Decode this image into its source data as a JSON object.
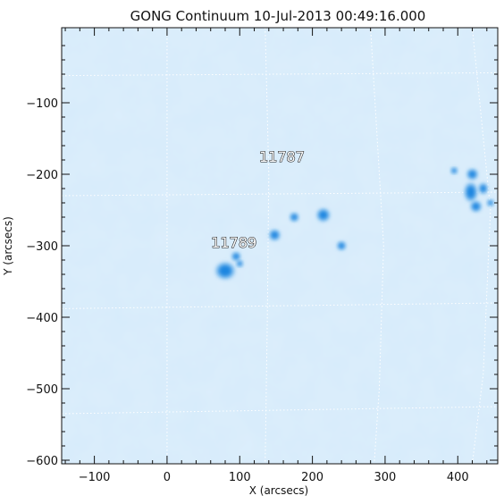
{
  "chart_data": {
    "type": "heatmap",
    "title": "GONG Continuum 10-Jul-2013 00:49:16.000",
    "xlabel": "X (arcsecs)",
    "ylabel": "Y (arcsecs)",
    "xlim": [
      -145,
      455
    ],
    "ylim": [
      -605,
      5
    ],
    "x_ticks": [
      -100,
      0,
      100,
      200,
      300,
      400
    ],
    "y_ticks": [
      -100,
      -200,
      -300,
      -400,
      -500,
      -600
    ],
    "x_tick_labels": [
      "−100",
      "0",
      "100",
      "200",
      "300",
      "400"
    ],
    "y_tick_labels": [
      "−100",
      "−200",
      "−300",
      "−400",
      "−500",
      "−600"
    ],
    "colors": {
      "background": "#d6ebfb",
      "spot_dark": "#1f86e0",
      "spot_light": "#6fb4ec",
      "grid": "#ffffff",
      "frame": "#111111"
    },
    "grid": true,
    "annotations": [
      {
        "text": "11787",
        "x": 158,
        "y": -175
      },
      {
        "text": "11789",
        "x": 92,
        "y": -295
      }
    ],
    "features": [
      {
        "name": "spot-11789-main",
        "x": 80,
        "y": -335,
        "rx": 9,
        "ry": 8
      },
      {
        "name": "spot-11789-small",
        "x": 95,
        "y": -315,
        "rx": 4,
        "ry": 4
      },
      {
        "name": "spot-11789-tail",
        "x": 100,
        "y": -325,
        "rx": 3,
        "ry": 3
      },
      {
        "name": "spot-a",
        "x": 148,
        "y": -285,
        "rx": 5,
        "ry": 5
      },
      {
        "name": "spot-b",
        "x": 175,
        "y": -260,
        "rx": 4,
        "ry": 4
      },
      {
        "name": "spot-c",
        "x": 215,
        "y": -257,
        "rx": 6,
        "ry": 6
      },
      {
        "name": "spot-d",
        "x": 240,
        "y": -300,
        "rx": 4,
        "ry": 4
      },
      {
        "name": "spot-east-1",
        "x": 420,
        "y": -200,
        "rx": 5,
        "ry": 5
      },
      {
        "name": "spot-east-2",
        "x": 418,
        "y": -225,
        "rx": 6,
        "ry": 9
      },
      {
        "name": "spot-east-3",
        "x": 425,
        "y": -245,
        "rx": 5,
        "ry": 5
      },
      {
        "name": "spot-east-4",
        "x": 435,
        "y": -220,
        "rx": 4,
        "ry": 5
      },
      {
        "name": "spot-east-5",
        "x": 445,
        "y": -240,
        "rx": 3,
        "ry": 3
      },
      {
        "name": "spot-east-6",
        "x": 395,
        "y": -195,
        "rx": 3,
        "ry": 3
      }
    ]
  }
}
